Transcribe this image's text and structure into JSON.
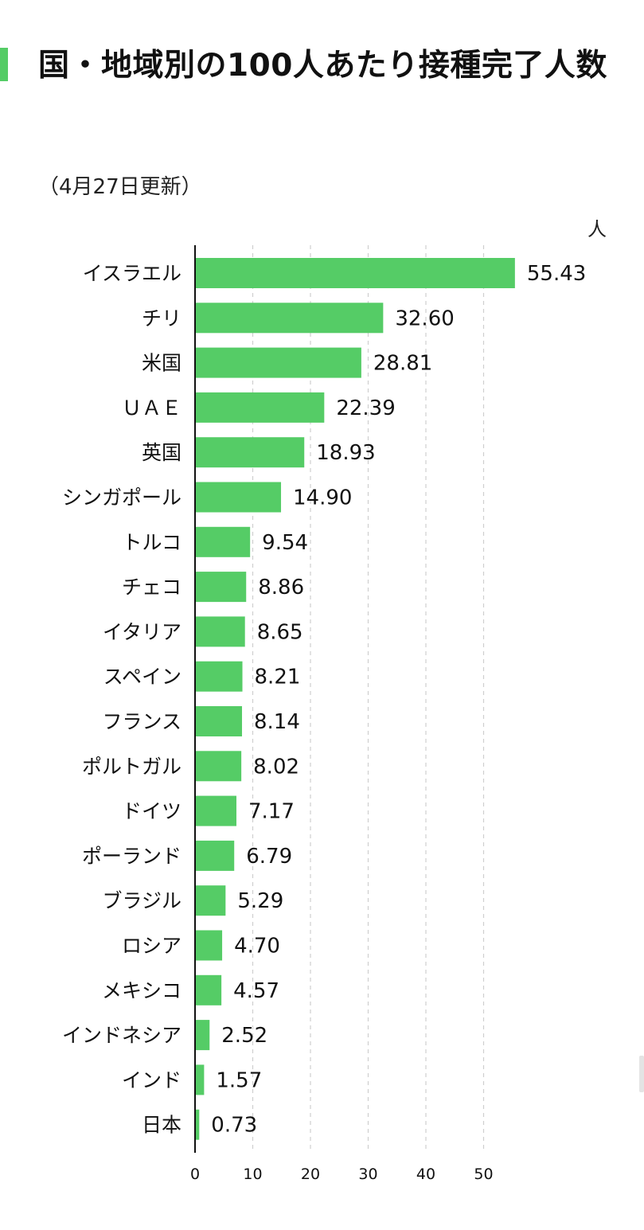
{
  "title": "国・地域別の100人あたり接種完了人数",
  "subtitle": "（4月27日更新）",
  "unit": "人",
  "colors": {
    "bar": "#55cc66",
    "accent": "#55cc66",
    "grid": "#cfcfcf",
    "axis": "#111111",
    "text": "#111111"
  },
  "chart_data": {
    "type": "bar",
    "orientation": "horizontal",
    "title": "国・地域別の100人あたり接種完了人数",
    "subtitle": "（4月27日更新）",
    "unit": "人",
    "categories": [
      "イスラエル",
      "チリ",
      "米国",
      "ＵＡＥ",
      "英国",
      "シンガポール",
      "トルコ",
      "チェコ",
      "イタリア",
      "スペイン",
      "フランス",
      "ポルトガル",
      "ドイツ",
      "ポーランド",
      "ブラジル",
      "ロシア",
      "メキシコ",
      "インドネシア",
      "インド",
      "日本"
    ],
    "values": [
      55.43,
      32.6,
      28.81,
      22.39,
      18.93,
      14.9,
      9.54,
      8.86,
      8.65,
      8.21,
      8.14,
      8.02,
      7.17,
      6.79,
      5.29,
      4.7,
      4.57,
      2.52,
      1.57,
      0.73
    ],
    "value_labels": [
      "55.43",
      "32.60",
      "28.81",
      "22.39",
      "18.93",
      "14.90",
      "9.54",
      "8.86",
      "8.65",
      "8.21",
      "8.14",
      "8.02",
      "7.17",
      "6.79",
      "5.29",
      "4.70",
      "4.57",
      "2.52",
      "1.57",
      "0.73"
    ],
    "x_ticks": [
      0,
      10,
      20,
      30,
      40,
      50
    ],
    "xlim": [
      0,
      55.43
    ],
    "grid": "vertical dashed",
    "legend": "none"
  }
}
